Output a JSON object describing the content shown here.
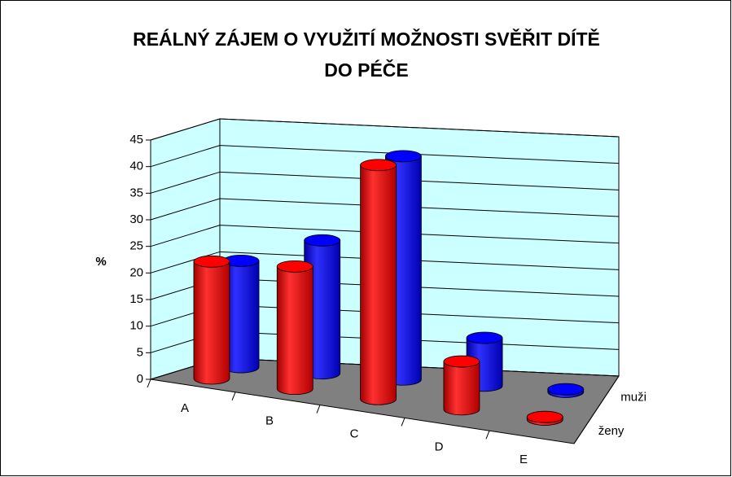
{
  "chart_data": {
    "type": "bar3d",
    "title": "REÁLNÝ ZÁJEM O VYUŽITÍ MOŽNOSTI SVĚŘIT DÍTĚ DO PÉČE",
    "y_label": "%",
    "categories": [
      "A",
      "B",
      "C",
      "D",
      "E"
    ],
    "series": [
      {
        "name": "ženy",
        "color": "#ff0000",
        "values": [
          22,
          23,
          44,
          9,
          0.5
        ]
      },
      {
        "name": "muži",
        "color": "#0000ff",
        "values": [
          20,
          25,
          42,
          9,
          0.5
        ]
      }
    ],
    "ylim": [
      0,
      45
    ],
    "yticks": [
      0,
      5,
      10,
      15,
      20,
      25,
      30,
      35,
      40,
      45
    ],
    "grid": true
  }
}
